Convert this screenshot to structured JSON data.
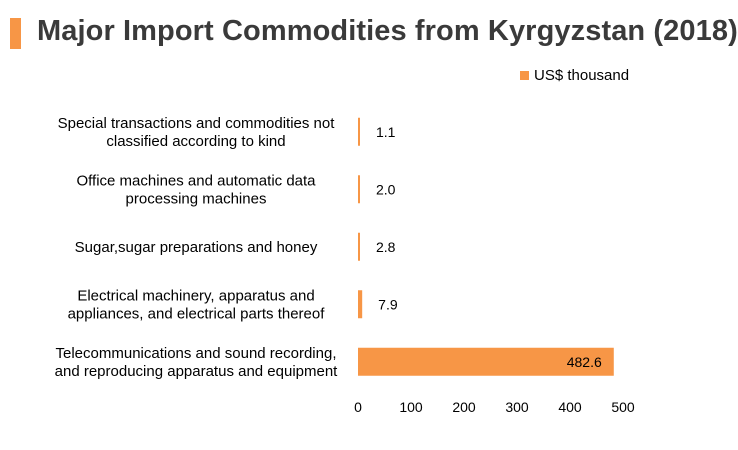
{
  "colors": {
    "accent": "#f79646",
    "title": "#3a3a3a"
  },
  "chart_data": {
    "type": "bar",
    "orientation": "horizontal",
    "title": "Major Import Commodities from Kyrgyzstan (2018)",
    "legend": [
      "US$ thousand"
    ],
    "legend_position": "top-right",
    "categories": [
      [
        "Special transactions and commodities not",
        "classified according to kind"
      ],
      [
        "Office machines and automatic data",
        "processing machines"
      ],
      [
        "Sugar,sugar preparations and honey"
      ],
      [
        "Electrical machinery, apparatus and",
        "appliances, and electrical parts thereof"
      ],
      [
        "Telecommunications and sound recording,",
        "and reproducing apparatus and equipment"
      ]
    ],
    "values": [
      1.1,
      2.0,
      2.8,
      7.9,
      482.6
    ],
    "value_labels": [
      "1.1",
      "2.0",
      "2.8",
      "7.9",
      "482.6"
    ],
    "xlim": [
      0,
      500
    ],
    "xticks": [
      0,
      100,
      200,
      300,
      400,
      500
    ],
    "xticklabels": [
      "0",
      "100",
      "200",
      "300",
      "400",
      "500"
    ],
    "grid": false
  }
}
